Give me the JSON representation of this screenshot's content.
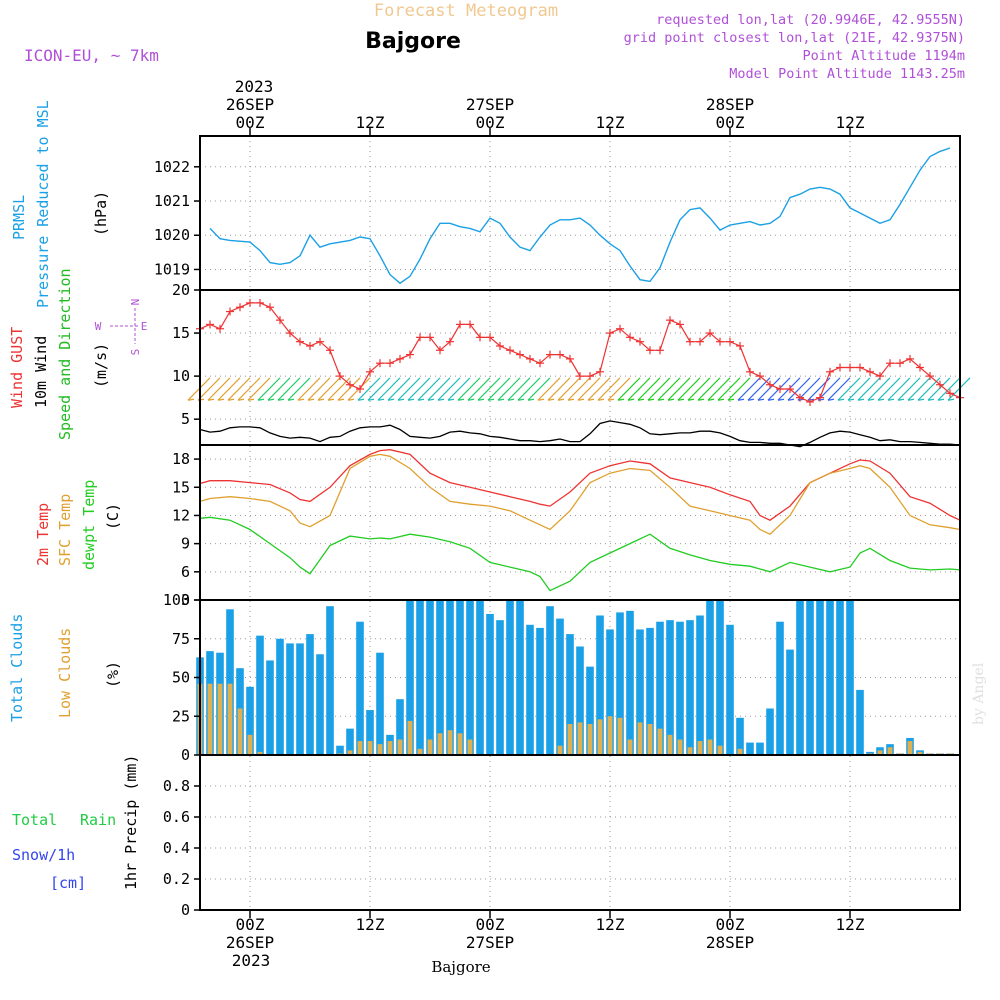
{
  "header": {
    "title_top": "Forecast Meteogram",
    "station": "Bajgore",
    "model": "ICON-EU, ~ 7km",
    "requested": "requested lon,lat (20.9946E, 42.9555N)",
    "grid_point": "grid point closest lon,lat (21E, 42.9375N)",
    "point_alt": "Point Altitude 1194m",
    "model_alt": "Model Point Altitude 1143.25m"
  },
  "footer": {
    "station": "Bajgore",
    "watermark": "by Angel"
  },
  "time_axis": {
    "top_year": "2023",
    "bottom_year": "2023",
    "ticks": [
      {
        "h": 0,
        "label": "00Z",
        "date": "26SEP"
      },
      {
        "h": 12,
        "label": "12Z",
        "date": ""
      },
      {
        "h": 24,
        "label": "00Z",
        "date": "27SEP"
      },
      {
        "h": 36,
        "label": "12Z",
        "date": ""
      },
      {
        "h": 48,
        "label": "00Z",
        "date": "28SEP"
      },
      {
        "h": 60,
        "label": "12Z",
        "date": ""
      }
    ],
    "x_range_hours": [
      -5,
      71
    ]
  },
  "colors": {
    "pressure": "#1aa0e6",
    "gust": "#ee3333",
    "wind": "#000000",
    "wind_label": "#22bb22",
    "temp2m": "#ee3333",
    "sfc_temp": "#e0a030",
    "dewpt": "#22cc22",
    "total_clouds": "#1aa0e6",
    "low_clouds": "#e0b050",
    "rain": "#22cc44",
    "snow": "#3344ee",
    "title_top": "#f0c890",
    "header_info": "#b050d8"
  },
  "panels": {
    "pressure": {
      "label1": "PRMSL",
      "label2": "Pressure Reduced to MSL",
      "unit": "(hPa)"
    },
    "wind": {
      "label_gust": "Wind GUST",
      "label_wind": "10m Wind",
      "label_dir": "Speed and Direction",
      "unit": "(m/s)",
      "compass_n": "N",
      "compass_s": "S",
      "compass_w": "W",
      "compass_e": "E"
    },
    "temp": {
      "label_t2m": "2m Temp",
      "label_sfc": "SFC Temp",
      "label_dew": "dewpt Temp",
      "unit": "(C)"
    },
    "clouds": {
      "label_total": "Total Clouds",
      "label_low": "Low Clouds",
      "unit": "(%)"
    },
    "precip": {
      "label_total": "Total",
      "label_rain": "Rain",
      "label_snow": "Snow/1h",
      "label_cm": "[cm]",
      "unit": "1hr Precip (mm)"
    }
  },
  "chart_data": [
    {
      "type": "line",
      "name": "PRMSL",
      "ylabel": "(hPa)",
      "ylim": [
        1018.4,
        1022.9
      ],
      "yticks": [
        1019,
        1020,
        1021,
        1022
      ],
      "grid": true,
      "x": [
        -4,
        -3,
        -2,
        0,
        1,
        2,
        3,
        4,
        5,
        6,
        7,
        8,
        10,
        11,
        12,
        13,
        14,
        15,
        16,
        17,
        18,
        19,
        20,
        21,
        22,
        23,
        24,
        25,
        26,
        27,
        28,
        29,
        30,
        31,
        32,
        33,
        34,
        35,
        36,
        37,
        38,
        39,
        40,
        41,
        42,
        43,
        44,
        45,
        46,
        47,
        48,
        49,
        50,
        51,
        52,
        53,
        54,
        55,
        56,
        57,
        58,
        59,
        60,
        61,
        62,
        63,
        64,
        65,
        66,
        67,
        68,
        69,
        70
      ],
      "series": [
        {
          "name": "PRMSL",
          "values": [
            1020.2,
            1019.9,
            1019.85,
            1019.8,
            1019.55,
            1019.2,
            1019.15,
            1019.2,
            1019.4,
            1020.0,
            1019.65,
            1019.75,
            1019.85,
            1019.95,
            1019.9,
            1019.4,
            1018.85,
            1018.6,
            1018.8,
            1019.3,
            1019.9,
            1020.35,
            1020.35,
            1020.25,
            1020.2,
            1020.1,
            1020.5,
            1020.35,
            1019.95,
            1019.65,
            1019.55,
            1019.95,
            1020.3,
            1020.45,
            1020.45,
            1020.5,
            1020.3,
            1020.0,
            1019.75,
            1019.55,
            1019.1,
            1018.7,
            1018.65,
            1019.05,
            1019.8,
            1020.45,
            1020.75,
            1020.8,
            1020.5,
            1020.15,
            1020.3,
            1020.35,
            1020.4,
            1020.3,
            1020.35,
            1020.55,
            1021.1,
            1021.2,
            1021.35,
            1021.4,
            1021.35,
            1021.2,
            1020.8,
            1020.65,
            1020.5,
            1020.35,
            1020.45,
            1020.9,
            1021.4,
            1021.9,
            1022.3,
            1022.45,
            1022.55
          ]
        }
      ]
    },
    {
      "type": "line",
      "name": "Wind",
      "ylabel": "(m/s)",
      "ylim": [
        2,
        20
      ],
      "yticks": [
        5,
        10,
        15,
        20
      ],
      "grid": true,
      "x": [
        -5,
        -4,
        -3,
        -2,
        -1,
        0,
        1,
        2,
        3,
        4,
        5,
        6,
        7,
        8,
        9,
        10,
        11,
        12,
        13,
        14,
        15,
        16,
        17,
        18,
        19,
        20,
        21,
        22,
        23,
        24,
        25,
        26,
        27,
        28,
        29,
        30,
        31,
        32,
        33,
        34,
        35,
        36,
        37,
        38,
        39,
        40,
        41,
        42,
        43,
        44,
        45,
        46,
        47,
        48,
        49,
        50,
        51,
        52,
        53,
        54,
        55,
        56,
        57,
        58,
        59,
        60,
        61,
        62,
        63,
        64,
        65,
        66,
        67,
        68,
        69,
        70,
        71
      ],
      "series": [
        {
          "name": "Wind GUST",
          "values": [
            15.5,
            16.0,
            15.5,
            17.5,
            18.0,
            18.5,
            18.5,
            18.0,
            16.5,
            15.0,
            14.0,
            13.5,
            14.0,
            13.0,
            10.0,
            9.0,
            8.5,
            10.5,
            11.5,
            11.5,
            12.0,
            12.5,
            14.5,
            14.5,
            13.0,
            14.0,
            16.0,
            16.0,
            14.5,
            14.5,
            13.5,
            13.0,
            12.5,
            12.0,
            11.5,
            12.5,
            12.5,
            12.0,
            10.0,
            10.0,
            10.5,
            15.0,
            15.5,
            14.5,
            14.0,
            13.0,
            13.0,
            16.5,
            16.0,
            14.0,
            14.0,
            15.0,
            14.0,
            14.0,
            13.5,
            10.5,
            10.0,
            9.0,
            8.5,
            8.5,
            7.5,
            7.0,
            7.5,
            10.5,
            11.0,
            11.0,
            11.0,
            10.5,
            10.0,
            11.5,
            11.5,
            12.0,
            11.0,
            10.0,
            9.0,
            8.0,
            7.5
          ]
        },
        {
          "name": "10m Wind",
          "values": [
            3.8,
            3.5,
            3.6,
            4.0,
            4.1,
            4.1,
            4.0,
            3.4,
            3.0,
            2.8,
            2.9,
            2.8,
            2.4,
            2.9,
            3.0,
            3.6,
            4.0,
            4.1,
            4.1,
            4.3,
            3.8,
            3.0,
            2.9,
            2.8,
            3.0,
            3.5,
            3.6,
            3.4,
            3.3,
            3.0,
            2.9,
            2.7,
            2.5,
            2.5,
            2.4,
            2.5,
            2.7,
            2.4,
            2.4,
            3.3,
            4.5,
            4.8,
            4.6,
            4.4,
            4.0,
            3.3,
            3.2,
            3.3,
            3.4,
            3.4,
            3.6,
            3.6,
            3.4,
            3.0,
            2.5,
            2.3,
            2.3,
            2.2,
            2.2,
            2.0,
            1.8,
            2.3,
            2.9,
            3.4,
            3.6,
            3.5,
            3.2,
            2.9,
            2.5,
            2.6,
            2.4,
            2.4,
            2.3,
            2.2,
            2.1,
            2.1,
            2.0
          ]
        }
      ]
    },
    {
      "type": "line",
      "name": "Temperature",
      "ylabel": "(C)",
      "ylim": [
        3,
        19.5
      ],
      "yticks": [
        3,
        6,
        9,
        12,
        15,
        18
      ],
      "grid": true,
      "x": [
        -5,
        -4,
        -2,
        0,
        2,
        4,
        5,
        6,
        8,
        10,
        12,
        13,
        14,
        16,
        18,
        20,
        22,
        24,
        26,
        28,
        29,
        30,
        32,
        34,
        36,
        38,
        40,
        42,
        44,
        46,
        48,
        50,
        51,
        52,
        54,
        56,
        58,
        60,
        61,
        62,
        64,
        66,
        68,
        70,
        71
      ],
      "series": [
        {
          "name": "2m Temp",
          "values": [
            15.4,
            15.7,
            15.7,
            15.5,
            15.3,
            14.4,
            13.7,
            13.5,
            15.0,
            17.3,
            18.5,
            18.9,
            19.0,
            18.5,
            16.5,
            15.5,
            15.0,
            14.5,
            14.0,
            13.5,
            13.2,
            13.0,
            14.5,
            16.5,
            17.3,
            17.8,
            17.5,
            16.0,
            15.5,
            15.0,
            14.2,
            13.5,
            12.0,
            11.5,
            13.0,
            15.5,
            16.5,
            17.5,
            17.9,
            17.8,
            16.5,
            14.0,
            13.3,
            12.0,
            11.5
          ]
        },
        {
          "name": "SFC Temp",
          "values": [
            13.5,
            13.8,
            14.0,
            13.8,
            13.5,
            12.5,
            11.2,
            10.8,
            12.0,
            17.0,
            18.3,
            18.5,
            18.3,
            17.0,
            15.0,
            13.5,
            13.2,
            13.0,
            12.5,
            11.5,
            11.0,
            10.5,
            12.5,
            15.5,
            16.5,
            17.0,
            16.8,
            15.0,
            13.0,
            12.5,
            12.0,
            11.5,
            10.5,
            10.0,
            12.0,
            15.5,
            16.5,
            17.0,
            17.3,
            17.0,
            15.0,
            12.0,
            11.0,
            10.7,
            10.5
          ]
        },
        {
          "name": "dewpt Temp",
          "values": [
            11.7,
            11.8,
            11.5,
            10.5,
            9.0,
            7.5,
            6.5,
            5.8,
            8.8,
            9.8,
            9.5,
            9.6,
            9.5,
            10.0,
            9.7,
            9.2,
            8.5,
            7.0,
            6.5,
            6.0,
            5.5,
            4.0,
            5.0,
            7.0,
            8.0,
            9.0,
            10.0,
            8.5,
            7.8,
            7.2,
            6.8,
            6.6,
            6.3,
            6.0,
            7.0,
            6.5,
            6.0,
            6.5,
            8.0,
            8.5,
            7.2,
            6.4,
            6.2,
            6.3,
            6.2
          ]
        }
      ]
    },
    {
      "type": "bar",
      "name": "Clouds",
      "ylabel": "(%)",
      "ylim": [
        0,
        100
      ],
      "yticks": [
        0,
        25,
        50,
        75,
        100
      ],
      "grid": true,
      "x": [
        -5,
        -4,
        -3,
        -2,
        -1,
        0,
        1,
        2,
        3,
        4,
        5,
        6,
        7,
        8,
        9,
        10,
        11,
        12,
        13,
        14,
        15,
        16,
        17,
        18,
        19,
        20,
        21,
        22,
        23,
        24,
        25,
        26,
        27,
        28,
        29,
        30,
        31,
        32,
        33,
        34,
        35,
        36,
        37,
        38,
        39,
        40,
        41,
        42,
        43,
        44,
        45,
        46,
        47,
        48,
        49,
        50,
        51,
        52,
        53,
        54,
        55,
        56,
        57,
        58,
        59,
        60,
        61,
        62,
        63,
        64,
        65,
        66,
        67,
        68,
        69,
        70,
        71
      ],
      "series": [
        {
          "name": "Total Clouds",
          "values": [
            63,
            67,
            66,
            94,
            56,
            44,
            77,
            61,
            75,
            72,
            72,
            78,
            65,
            96,
            6,
            17,
            86,
            29,
            66,
            13,
            36,
            100,
            100,
            100,
            100,
            100,
            100,
            100,
            100,
            91,
            87,
            100,
            100,
            84,
            82,
            96,
            88,
            78,
            70,
            57,
            90,
            81,
            92,
            93,
            81,
            82,
            86,
            87,
            86,
            87,
            90,
            100,
            100,
            84,
            24,
            8,
            8,
            30,
            86,
            68,
            100,
            100,
            100,
            100,
            100,
            100,
            42,
            2,
            5,
            7,
            1,
            11,
            3,
            1,
            1,
            1,
            0
          ]
        },
        {
          "name": "Low Clouds",
          "values": [
            46,
            46,
            46,
            46,
            30,
            13,
            2,
            0,
            0,
            0,
            0,
            0,
            0,
            0,
            1,
            3,
            9,
            9,
            7,
            9,
            10,
            22,
            4,
            10,
            14,
            16,
            14,
            10,
            0,
            0,
            0,
            0,
            0,
            0,
            0,
            0,
            6,
            20,
            21,
            20,
            23,
            25,
            24,
            10,
            21,
            20,
            17,
            13,
            10,
            5,
            9,
            10,
            6,
            0,
            4,
            0,
            0,
            0,
            0,
            0,
            0,
            0,
            0,
            0,
            0,
            0,
            0,
            1,
            3,
            5,
            1,
            9,
            2,
            1,
            1,
            1,
            0
          ]
        }
      ]
    },
    {
      "type": "bar",
      "name": "Precipitation",
      "ylabel": "1hr Precip (mm)",
      "ylim": [
        0,
        1
      ],
      "yticks": [
        0,
        0.2,
        0.4,
        0.6,
        0.8
      ],
      "grid": true,
      "series": [
        {
          "name": "Total Rain",
          "values": []
        },
        {
          "name": "Snow/1h",
          "values": []
        }
      ]
    }
  ]
}
